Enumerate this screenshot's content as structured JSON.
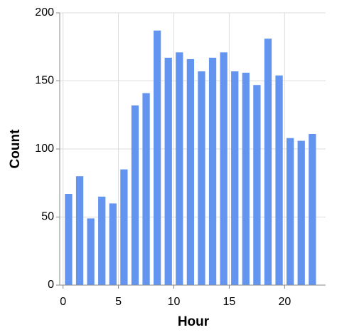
{
  "chart_data": {
    "type": "histogram",
    "x_label": "Hour",
    "y_label": "Count",
    "bins": [
      0,
      1,
      2,
      3,
      4,
      5,
      6,
      7,
      8,
      9,
      10,
      11,
      12,
      13,
      14,
      15,
      16,
      17,
      18,
      19,
      20,
      21,
      22,
      23
    ],
    "values": [
      67,
      80,
      49,
      65,
      60,
      85,
      132,
      141,
      187,
      167,
      171,
      166,
      157,
      167,
      171,
      157,
      156,
      147,
      181,
      154,
      108,
      106,
      111
    ],
    "color": "#6394f0",
    "xlim": [
      -0.3,
      23.7
    ],
    "xticks": [
      0,
      5,
      10,
      15,
      20
    ],
    "ylim": [
      0,
      200
    ],
    "yticks": [
      0,
      50,
      100,
      150,
      200
    ],
    "grid": true
  }
}
